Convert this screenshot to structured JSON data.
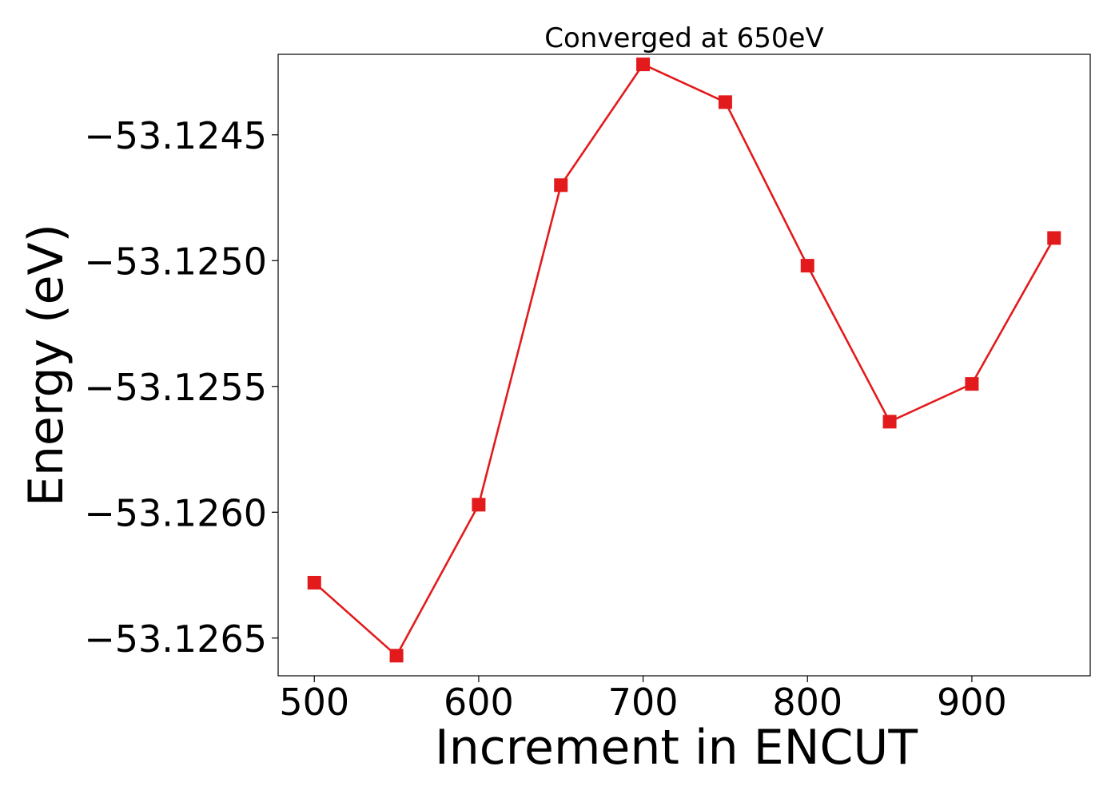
{
  "chart_data": {
    "type": "line",
    "title": "Converged at 650eV",
    "xlabel": "Increment in ENCUT",
    "ylabel": "Energy (eV)",
    "xlim": [
      478,
      972
    ],
    "ylim": [
      -53.12665,
      -53.12418
    ],
    "x_ticks": [
      500,
      600,
      700,
      800,
      900
    ],
    "x_tick_labels": [
      "500",
      "600",
      "700",
      "800",
      "900"
    ],
    "y_ticks": [
      -53.1245,
      -53.125,
      -53.1255,
      -53.126,
      -53.1265
    ],
    "y_tick_labels": [
      "−53.1245",
      "−53.1250",
      "−53.1255",
      "−53.1260",
      "−53.1265"
    ],
    "grid": false,
    "legend": "none",
    "series": [
      {
        "color": "#e31a1c",
        "marker": "square",
        "x": [
          500,
          550,
          600,
          650,
          700,
          750,
          800,
          850,
          900,
          950
        ],
        "y": [
          -53.12628,
          -53.12657,
          -53.12597,
          -53.1247,
          -53.12422,
          -53.12437,
          -53.12502,
          -53.12564,
          -53.12549,
          -53.12491
        ]
      }
    ]
  }
}
